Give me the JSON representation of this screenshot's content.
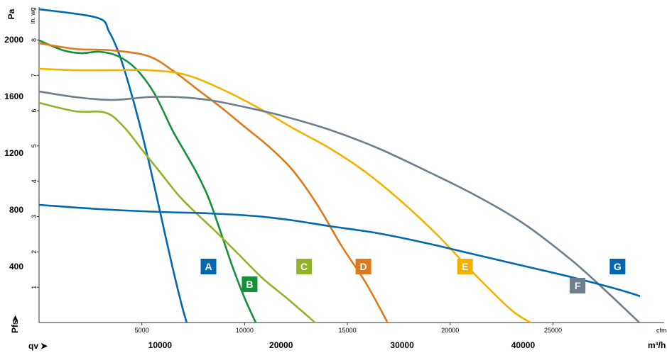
{
  "chart_data": {
    "type": "line",
    "title": "",
    "ylabel_left": "Pa",
    "ylabel_inner": "in. wg",
    "pfs_label": "Pfs",
    "qv_label": "qv",
    "x_unit_top": "cfm",
    "x_unit_bottom": "m³/h",
    "x_m3h": {
      "range": [
        0,
        49600
      ],
      "ticks": [
        10000,
        20000,
        30000,
        40000
      ]
    },
    "x_cfm": {
      "range": [
        0,
        29200
      ],
      "ticks": [
        5000,
        10000,
        15000,
        20000,
        25000
      ]
    },
    "y_pa": {
      "range": [
        0,
        2225
      ],
      "ticks": [
        400,
        800,
        1200,
        1600,
        2000
      ]
    },
    "y_inwg": {
      "ticks": [
        1,
        2,
        3,
        4,
        5,
        6,
        7,
        8
      ]
    },
    "grid": false,
    "series": [
      {
        "name": "A",
        "color": "#0068b0",
        "label_at": [
          14000,
          395
        ],
        "points": [
          [
            0,
            2210
          ],
          [
            4800,
            2150
          ],
          [
            5800,
            2050
          ],
          [
            6800,
            1850
          ],
          [
            8000,
            1500
          ],
          [
            9000,
            1160
          ],
          [
            10000,
            780
          ],
          [
            11000,
            400
          ],
          [
            11800,
            120
          ],
          [
            12200,
            0
          ]
        ]
      },
      {
        "name": "B",
        "color": "#14903c",
        "label_at": [
          17400,
          270
        ],
        "points": [
          [
            0,
            1990
          ],
          [
            2000,
            1920
          ],
          [
            3500,
            1900
          ],
          [
            5000,
            1910
          ],
          [
            6500,
            1880
          ],
          [
            8000,
            1790
          ],
          [
            9500,
            1620
          ],
          [
            11000,
            1360
          ],
          [
            12000,
            1210
          ],
          [
            13000,
            1060
          ],
          [
            14000,
            880
          ],
          [
            15000,
            640
          ],
          [
            16000,
            390
          ],
          [
            17000,
            170
          ],
          [
            17900,
            0
          ]
        ]
      },
      {
        "name": "C",
        "color": "#8fb42a",
        "label_at": [
          21900,
          395
        ],
        "points": [
          [
            0,
            1550
          ],
          [
            3000,
            1490
          ],
          [
            5500,
            1480
          ],
          [
            7000,
            1380
          ],
          [
            8500,
            1220
          ],
          [
            10000,
            1060
          ],
          [
            11500,
            900
          ],
          [
            13000,
            770
          ],
          [
            14500,
            650
          ],
          [
            16500,
            480
          ],
          [
            18500,
            310
          ],
          [
            20500,
            170
          ],
          [
            22800,
            0
          ]
        ]
      },
      {
        "name": "D",
        "color": "#de7a1c",
        "label_at": [
          26800,
          395
        ],
        "points": [
          [
            0,
            1970
          ],
          [
            3000,
            1930
          ],
          [
            6000,
            1920
          ],
          [
            9000,
            1880
          ],
          [
            11000,
            1780
          ],
          [
            13000,
            1650
          ],
          [
            15000,
            1520
          ],
          [
            17000,
            1380
          ],
          [
            19000,
            1240
          ],
          [
            21000,
            1070
          ],
          [
            23000,
            830
          ],
          [
            25000,
            540
          ],
          [
            27000,
            280
          ],
          [
            28800,
            0
          ]
        ]
      },
      {
        "name": "E",
        "color": "#f1b200",
        "label_at": [
          35200,
          395
        ],
        "points": [
          [
            0,
            1790
          ],
          [
            3000,
            1780
          ],
          [
            6000,
            1780
          ],
          [
            9000,
            1780
          ],
          [
            12000,
            1750
          ],
          [
            15000,
            1650
          ],
          [
            18000,
            1520
          ],
          [
            21000,
            1370
          ],
          [
            24000,
            1230
          ],
          [
            27000,
            1060
          ],
          [
            30000,
            850
          ],
          [
            33000,
            610
          ],
          [
            36000,
            340
          ],
          [
            39000,
            90
          ],
          [
            40600,
            0
          ]
        ]
      },
      {
        "name": "F",
        "color": "#6b7f8e",
        "label_at": [
          44500,
          260
        ],
        "points": [
          [
            0,
            1630
          ],
          [
            3000,
            1590
          ],
          [
            6000,
            1570
          ],
          [
            9000,
            1590
          ],
          [
            11500,
            1590
          ],
          [
            14000,
            1570
          ],
          [
            17000,
            1520
          ],
          [
            20000,
            1460
          ],
          [
            24000,
            1360
          ],
          [
            28000,
            1230
          ],
          [
            32000,
            1070
          ],
          [
            36000,
            900
          ],
          [
            40000,
            700
          ],
          [
            44000,
            440
          ],
          [
            47000,
            210
          ],
          [
            49600,
            0
          ]
        ]
      },
      {
        "name": "G",
        "color": "#0068b0",
        "label_at": [
          47800,
          395
        ],
        "points": [
          [
            0,
            830
          ],
          [
            5000,
            800
          ],
          [
            10000,
            780
          ],
          [
            14000,
            770
          ],
          [
            18000,
            750
          ],
          [
            21000,
            720
          ],
          [
            24000,
            680
          ],
          [
            28000,
            630
          ],
          [
            32000,
            560
          ],
          [
            36000,
            480
          ],
          [
            40000,
            400
          ],
          [
            44000,
            320
          ],
          [
            48000,
            230
          ],
          [
            51000,
            150
          ],
          [
            54000,
            75
          ],
          [
            56500,
            0
          ]
        ]
      }
    ]
  }
}
